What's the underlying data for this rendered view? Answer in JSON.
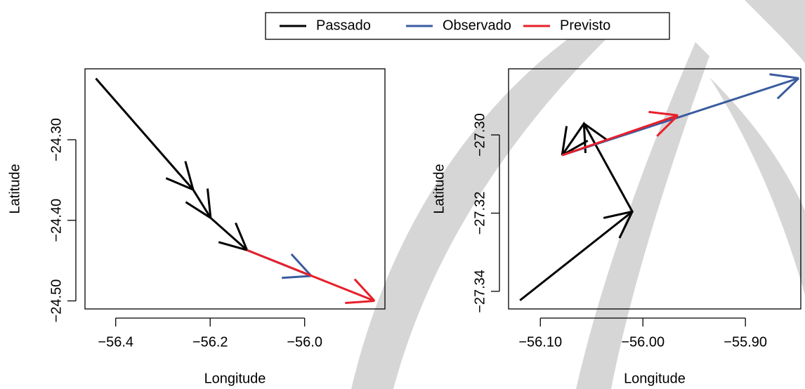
{
  "chart_data": [
    {
      "type": "line",
      "arrows": true,
      "x_label": "Longitude",
      "y_label": "Latitude",
      "xlim": [
        -56.465,
        -55.83
      ],
      "ylim": [
        -24.51,
        -24.212
      ],
      "xticks": [
        {
          "value": -56.4,
          "label": "−56.4"
        },
        {
          "value": -56.2,
          "label": "−56.2"
        },
        {
          "value": -56.0,
          "label": "−56.0"
        }
      ],
      "yticks": [
        {
          "value": -24.3,
          "label": "−24.30"
        },
        {
          "value": -24.4,
          "label": "−24.40"
        },
        {
          "value": -24.5,
          "label": "−24.50"
        }
      ],
      "series": [
        {
          "name": "Passado",
          "color": "#000000",
          "x": [
            -56.442,
            -56.236,
            -56.199,
            -56.122
          ],
          "values": [
            -24.224,
            -24.362,
            -24.397,
            -24.437
          ]
        },
        {
          "name": "Observado",
          "color": "#3a5ba0",
          "x": [
            -56.122,
            -55.986
          ],
          "values": [
            -24.437,
            -24.469
          ]
        },
        {
          "name": "Previsto",
          "color": "#e8202a",
          "x": [
            -56.122,
            -55.852
          ],
          "values": [
            -24.437,
            -24.5
          ]
        }
      ]
    },
    {
      "type": "line",
      "arrows": true,
      "x_label": "Longitude",
      "y_label": "Latitude",
      "xlim": [
        -56.131,
        -55.846
      ],
      "ylim": [
        -27.3445,
        -27.2831
      ],
      "xticks": [
        {
          "value": -56.1,
          "label": "−56.10"
        },
        {
          "value": -56.0,
          "label": "−56.00"
        },
        {
          "value": -55.9,
          "label": "−55.90"
        }
      ],
      "yticks": [
        {
          "value": -27.3,
          "label": "−27.30"
        },
        {
          "value": -27.32,
          "label": "−27.32"
        },
        {
          "value": -27.34,
          "label": "−27.34"
        }
      ],
      "series": [
        {
          "color": "#000000",
          "x": [
            -56.1199,
            -56.0103,
            -56.0575,
            -56.0788
          ],
          "values": [
            -27.3423,
            -27.3196,
            -27.2971,
            -27.3052
          ]
        },
        {
          "color": "#3a5ba0",
          "x": [
            -56.0788,
            -55.848
          ],
          "values": [
            -27.3052,
            -27.2855
          ]
        },
        {
          "color": "#e8202a",
          "x": [
            -56.0788,
            -55.9658
          ],
          "values": [
            -27.3052,
            -27.295
          ]
        }
      ]
    }
  ]
}
